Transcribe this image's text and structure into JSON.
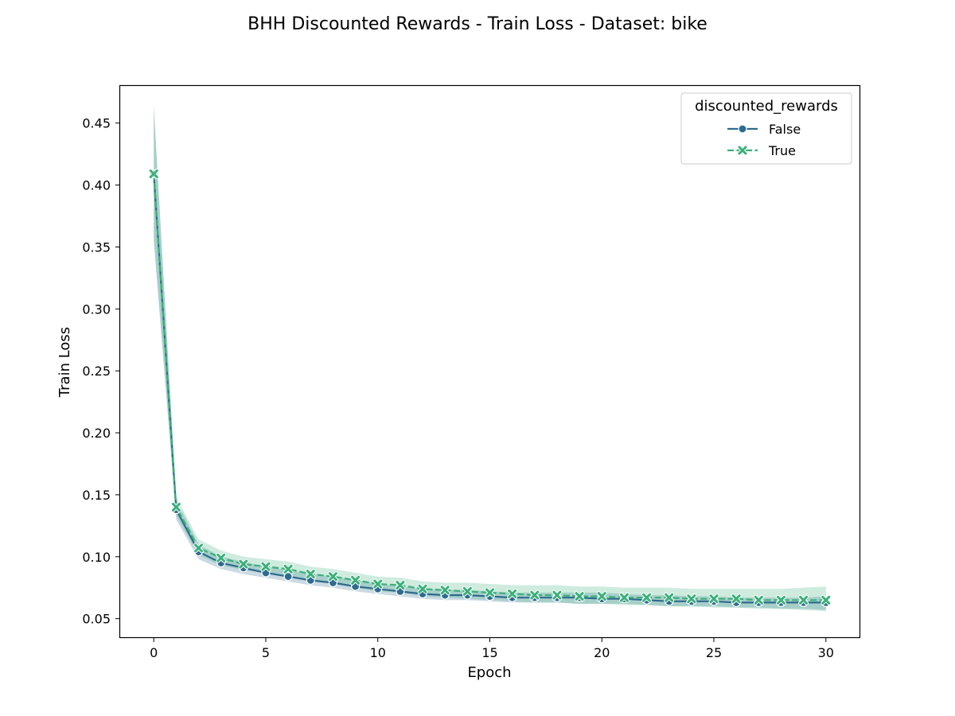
{
  "chart_data": {
    "type": "line",
    "title": "BHH Discounted Rewards - Train Loss - Dataset: bike",
    "xlabel": "Epoch",
    "ylabel": "Train Loss",
    "xlim": [
      -1.5,
      31.5
    ],
    "ylim": [
      0.035,
      0.48
    ],
    "xticks": [
      0,
      5,
      10,
      15,
      20,
      25,
      30
    ],
    "xtick_labels": [
      "0",
      "5",
      "10",
      "15",
      "20",
      "25",
      "30"
    ],
    "yticks": [
      0.05,
      0.1,
      0.15,
      0.2,
      0.25,
      0.3,
      0.35,
      0.4,
      0.45
    ],
    "ytick_labels": [
      "0.05",
      "0.10",
      "0.15",
      "0.20",
      "0.25",
      "0.30",
      "0.35",
      "0.40",
      "0.45"
    ],
    "grid": false,
    "legend": {
      "title": "discounted_rewards",
      "placement": "top-right"
    },
    "x": [
      0,
      1,
      2,
      3,
      4,
      5,
      6,
      7,
      8,
      9,
      10,
      11,
      12,
      13,
      14,
      15,
      16,
      17,
      18,
      19,
      20,
      21,
      22,
      23,
      24,
      25,
      26,
      27,
      28,
      29,
      30
    ],
    "series": [
      {
        "name": "False",
        "color": "#2e6b8e",
        "marker": "circle",
        "linestyle": "solid",
        "values": [
          0.409,
          0.138,
          0.104,
          0.095,
          0.091,
          0.087,
          0.084,
          0.081,
          0.079,
          0.076,
          0.074,
          0.072,
          0.07,
          0.069,
          0.069,
          0.068,
          0.067,
          0.067,
          0.067,
          0.067,
          0.066,
          0.066,
          0.065,
          0.064,
          0.064,
          0.064,
          0.063,
          0.063,
          0.063,
          0.063,
          0.063
        ],
        "ci_lower": [
          0.355,
          0.13,
          0.098,
          0.09,
          0.086,
          0.083,
          0.08,
          0.077,
          0.075,
          0.072,
          0.07,
          0.068,
          0.066,
          0.065,
          0.065,
          0.064,
          0.063,
          0.063,
          0.063,
          0.062,
          0.062,
          0.062,
          0.061,
          0.06,
          0.06,
          0.06,
          0.059,
          0.059,
          0.058,
          0.058,
          0.057
        ],
        "ci_upper": [
          0.465,
          0.146,
          0.11,
          0.1,
          0.096,
          0.092,
          0.089,
          0.086,
          0.084,
          0.081,
          0.078,
          0.076,
          0.074,
          0.073,
          0.073,
          0.072,
          0.071,
          0.071,
          0.071,
          0.071,
          0.071,
          0.07,
          0.069,
          0.069,
          0.068,
          0.068,
          0.067,
          0.067,
          0.067,
          0.067,
          0.068
        ]
      },
      {
        "name": "True",
        "color": "#3bb07a",
        "marker": "x",
        "linestyle": "dashed",
        "values": [
          0.409,
          0.14,
          0.107,
          0.099,
          0.094,
          0.092,
          0.09,
          0.086,
          0.084,
          0.081,
          0.078,
          0.077,
          0.074,
          0.073,
          0.072,
          0.071,
          0.07,
          0.069,
          0.069,
          0.068,
          0.068,
          0.067,
          0.067,
          0.067,
          0.066,
          0.066,
          0.066,
          0.065,
          0.065,
          0.065,
          0.065
        ],
        "ci_lower": [
          0.358,
          0.133,
          0.101,
          0.093,
          0.089,
          0.087,
          0.084,
          0.08,
          0.078,
          0.075,
          0.072,
          0.071,
          0.068,
          0.067,
          0.066,
          0.065,
          0.064,
          0.063,
          0.063,
          0.062,
          0.062,
          0.061,
          0.061,
          0.06,
          0.06,
          0.059,
          0.059,
          0.058,
          0.058,
          0.057,
          0.056
        ],
        "ci_upper": [
          0.462,
          0.148,
          0.114,
          0.105,
          0.1,
          0.098,
          0.096,
          0.092,
          0.09,
          0.087,
          0.084,
          0.083,
          0.08,
          0.079,
          0.079,
          0.078,
          0.077,
          0.077,
          0.077,
          0.076,
          0.076,
          0.075,
          0.075,
          0.075,
          0.074,
          0.074,
          0.074,
          0.074,
          0.074,
          0.075,
          0.076
        ]
      }
    ]
  }
}
